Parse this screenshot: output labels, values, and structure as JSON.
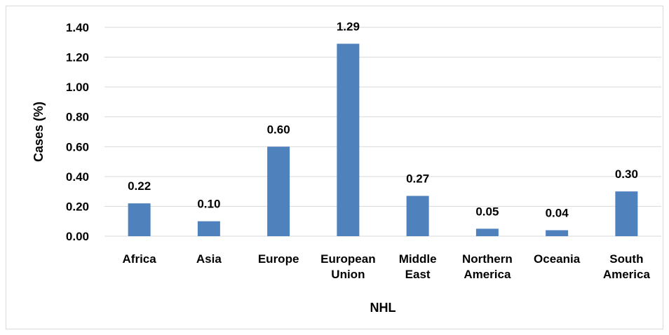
{
  "chart_data": {
    "type": "bar",
    "title": "",
    "xlabel": "NHL",
    "ylabel": "Cases (%)",
    "categories": [
      [
        "Africa"
      ],
      [
        "Asia"
      ],
      [
        "Europe"
      ],
      [
        "European",
        "Union"
      ],
      [
        "Middle",
        "East"
      ],
      [
        "Northern",
        "America"
      ],
      [
        "Oceania"
      ],
      [
        "South",
        "America"
      ]
    ],
    "values": [
      0.22,
      0.1,
      0.6,
      1.29,
      0.27,
      0.05,
      0.04,
      0.3
    ],
    "value_labels": [
      "0.22",
      "0.10",
      "0.60",
      "1.29",
      "0.27",
      "0.05",
      "0.04",
      "0.30"
    ],
    "ylim": [
      0,
      1.4
    ],
    "yticks": [
      "0.00",
      "0.20",
      "0.40",
      "0.60",
      "0.80",
      "1.00",
      "1.20",
      "1.40"
    ],
    "grid": true,
    "legend": "none",
    "colors": {
      "bar": "#4f81bd",
      "grid": "#d9d9d9"
    }
  }
}
